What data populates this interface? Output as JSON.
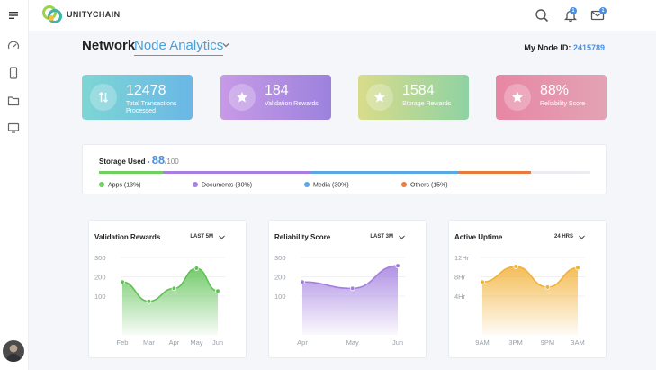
{
  "app": {
    "brand": "UNITYCHAIN"
  },
  "header": {
    "notifications_badge": "1",
    "messages_badge": "1"
  },
  "page": {
    "title_main": "Network",
    "title_selector": "Node Analytics",
    "node_id_label": "My Node ID:",
    "node_id_value": "2415789"
  },
  "stats": [
    {
      "value": "12478",
      "label": "Total Transactions Processed",
      "icon": "arrows-updown-icon",
      "gradient": [
        "#7dd6d4",
        "#6ab7e6"
      ]
    },
    {
      "value": "184",
      "label": "Validation Rewards",
      "icon": "star-icon",
      "gradient": [
        "#c79ae6",
        "#9c82dd"
      ]
    },
    {
      "value": "1584",
      "label": "Storage Rewards",
      "icon": "star-icon",
      "gradient": [
        "#d9dc8a",
        "#8fd2a3"
      ]
    },
    {
      "value": "88%",
      "label": "Reliability Score",
      "icon": "star-icon",
      "gradient": [
        "#e886a4",
        "#e3a3b4"
      ]
    }
  ],
  "storage": {
    "label": "Storage Used -",
    "used": "88",
    "max": "/100",
    "segments": [
      {
        "name": "Apps (13%)",
        "percent": 13,
        "color": "#6fcf5f"
      },
      {
        "name": "Documents (30%)",
        "percent": 30,
        "color": "#a77ee0"
      },
      {
        "name": "Media (30%)",
        "percent": 30,
        "color": "#5ba7e6"
      },
      {
        "name": "Others (15%)",
        "percent": 15,
        "color": "#ea7a3a"
      }
    ]
  },
  "chart_data": [
    {
      "type": "area",
      "title": "Validation Rewards",
      "range_label": "LAST 5M",
      "color": "#5fc255",
      "y_ticks": [
        "300",
        "200",
        "100"
      ],
      "ylim": [
        0,
        300
      ],
      "categories": [
        "Feb",
        "Mar",
        "Apr",
        "May",
        "Jun"
      ],
      "x": [
        0,
        1,
        1.95,
        2.8,
        3.6
      ],
      "values": [
        205,
        130,
        180,
        258,
        170
      ]
    },
    {
      "type": "area",
      "title": "Reliability Score",
      "range_label": "LAST 3M",
      "color": "#a37fe0",
      "y_ticks": [
        "300",
        "200",
        "100"
      ],
      "ylim": [
        0,
        300
      ],
      "categories": [
        "Apr",
        "May",
        "Jun"
      ],
      "x": [
        0,
        1.05,
        2
      ],
      "values": [
        205,
        180,
        268
      ]
    },
    {
      "type": "area",
      "title": "Active Uptime",
      "range_label": "24 HRS",
      "color": "#f2b23a",
      "y_ticks": [
        "12Hr",
        "8Hr",
        "4Hr"
      ],
      "ylim": [
        0,
        12
      ],
      "categories": [
        "9AM",
        "3PM",
        "9PM",
        "3AM"
      ],
      "x": [
        0,
        1.05,
        2.05,
        3
      ],
      "values": [
        8.2,
        10.6,
        7.4,
        10.4
      ]
    }
  ]
}
